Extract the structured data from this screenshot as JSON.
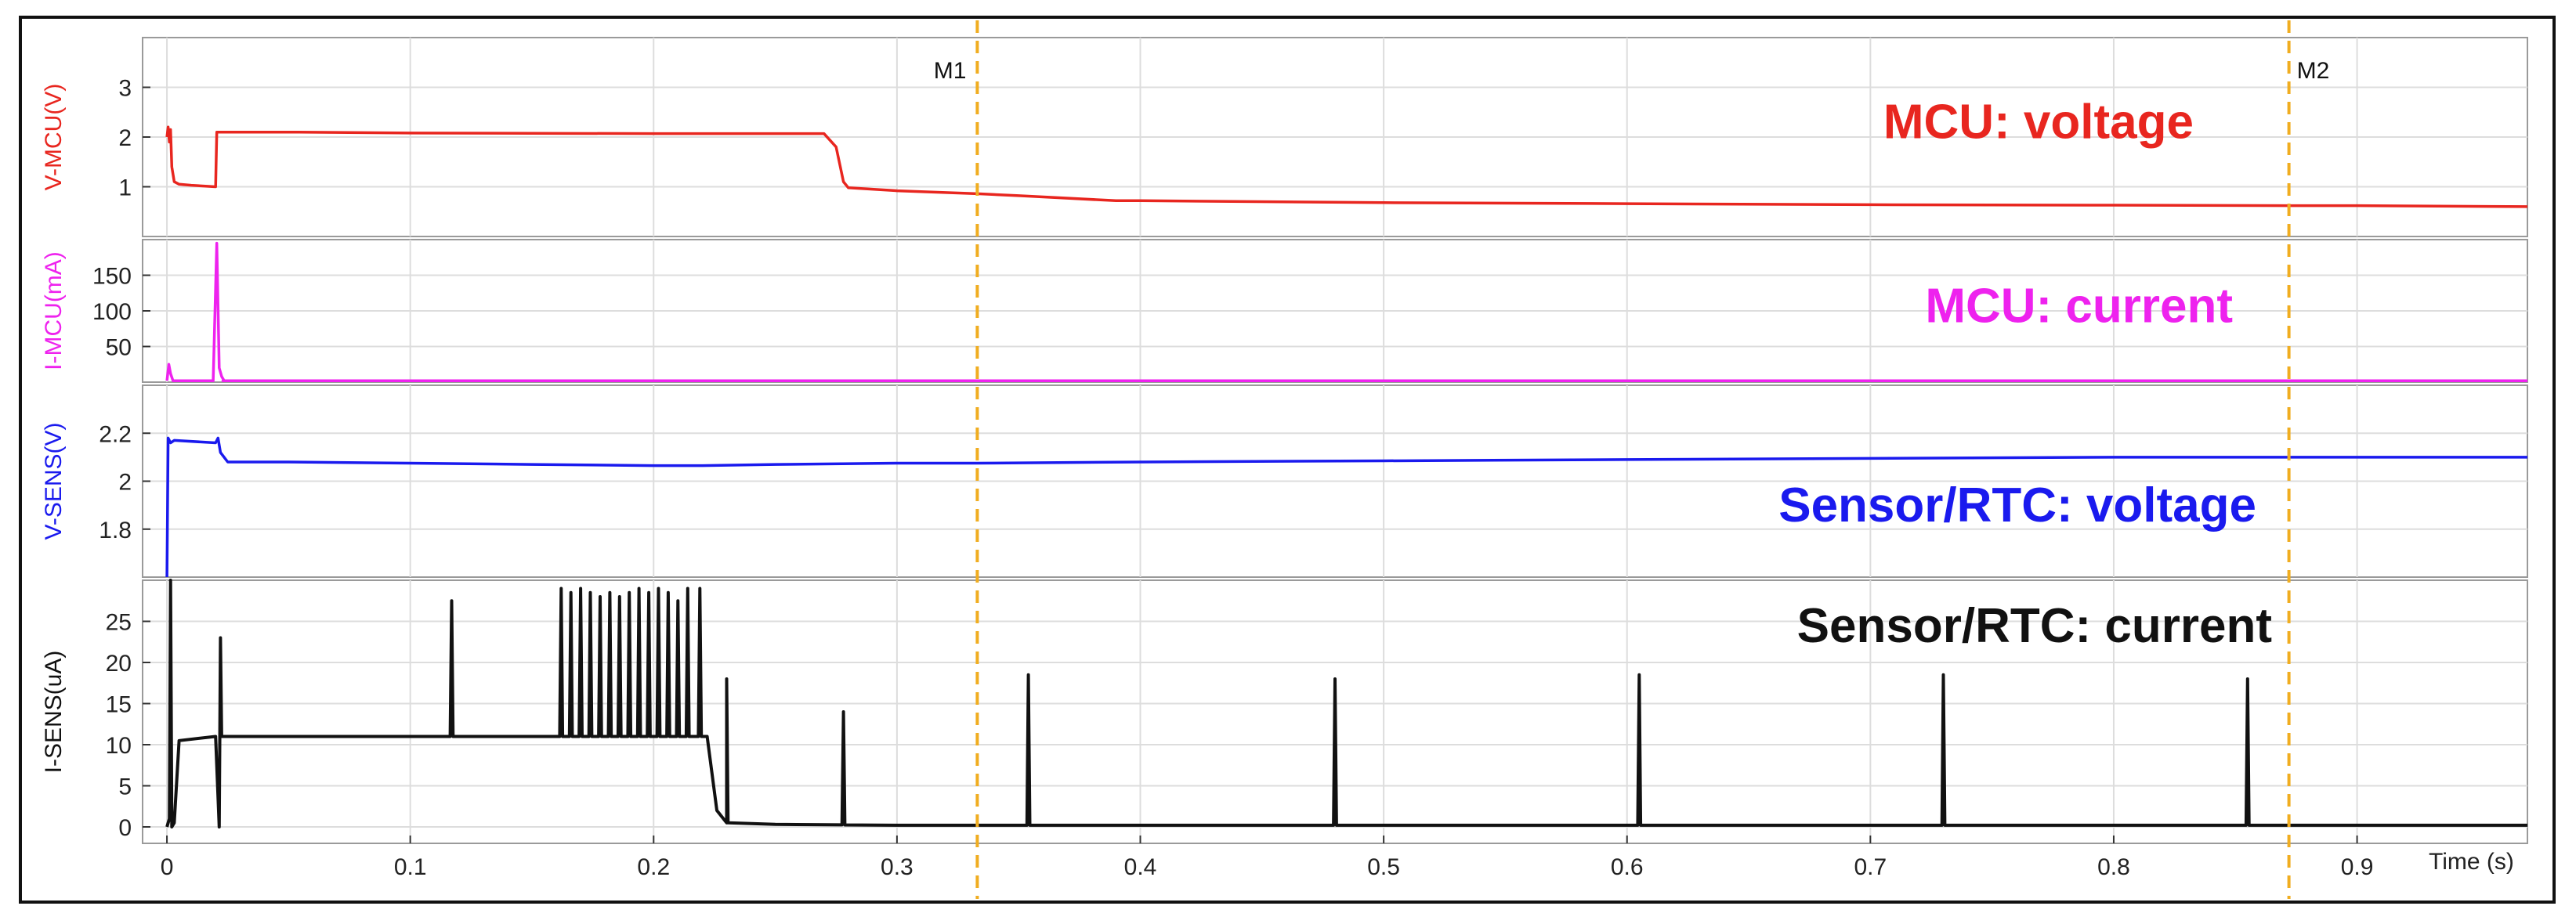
{
  "chart_data": {
    "type": "line",
    "xlabel": "Time (s)",
    "xlim": [
      -0.01,
      0.97
    ],
    "x_ticks": [
      0,
      0.1,
      0.2,
      0.3,
      0.4,
      0.5,
      0.6,
      0.7,
      0.8,
      0.9
    ],
    "x_tick_labels": [
      "0",
      "0.1",
      "0.2",
      "0.3",
      "0.4",
      "0.5",
      "0.6",
      "0.7",
      "0.8",
      "0.9"
    ],
    "grid": true,
    "markers": [
      {
        "label": "M1",
        "x": 0.333,
        "color": "#f0ad20"
      },
      {
        "label": "M2",
        "x": 0.872,
        "color": "#f0ad20"
      }
    ],
    "panels": [
      {
        "id": "v-mcu",
        "title": "MCU: voltage",
        "ylabel": "V-MCU(V)",
        "color": "#e8261f",
        "ylim": [
          0,
          4
        ],
        "y_ticks": [
          1,
          2,
          3
        ],
        "y_tick_labels": [
          "1",
          "2",
          "3"
        ],
        "series": {
          "x": [
            0,
            0.0005,
            0.001,
            0.0015,
            0.002,
            0.003,
            0.005,
            0.01,
            0.02,
            0.0205,
            0.0215,
            0.05,
            0.1,
            0.2,
            0.27,
            0.275,
            0.278,
            0.28,
            0.3,
            0.333,
            0.35,
            0.39,
            0.4,
            0.5,
            0.6,
            0.7,
            0.8,
            0.872,
            0.9,
            0.97
          ],
          "y": [
            2.0,
            2.2,
            1.9,
            2.15,
            1.4,
            1.1,
            1.05,
            1.03,
            1.0,
            2.1,
            2.1,
            2.1,
            2.08,
            2.07,
            2.07,
            1.8,
            1.1,
            0.98,
            0.92,
            0.86,
            0.82,
            0.72,
            0.72,
            0.68,
            0.66,
            0.64,
            0.63,
            0.62,
            0.62,
            0.6
          ]
        }
      },
      {
        "id": "i-mcu",
        "title": "MCU: current",
        "ylabel": "I-MCU(mA)",
        "color": "#ee22ee",
        "ylim": [
          0,
          200
        ],
        "y_ticks": [
          50,
          100,
          150
        ],
        "y_tick_labels": [
          "50",
          "100",
          "150"
        ],
        "series": {
          "x": [
            0,
            0.0008,
            0.0015,
            0.0025,
            0.019,
            0.0205,
            0.0215,
            0.0225,
            0.0235,
            0.023,
            0.5,
            0.97
          ],
          "y": [
            2,
            25,
            12,
            2,
            2,
            195,
            20,
            8,
            2,
            2,
            2,
            2
          ]
        }
      },
      {
        "id": "v-sens",
        "title": "Sensor/RTC: voltage",
        "ylabel": "V-SENS(V)",
        "color": "#1a1aee",
        "ylim": [
          1.6,
          2.4
        ],
        "y_ticks": [
          1.8,
          2,
          2.2
        ],
        "y_tick_labels": [
          "1.8",
          "2",
          "2.2"
        ],
        "series": {
          "x": [
            0,
            0.0005,
            0.0015,
            0.003,
            0.02,
            0.021,
            0.022,
            0.025,
            0.05,
            0.1,
            0.15,
            0.2,
            0.22,
            0.25,
            0.3,
            0.333,
            0.4,
            0.5,
            0.6,
            0.7,
            0.8,
            0.872,
            0.9,
            0.97
          ],
          "y": [
            1.6,
            2.18,
            2.16,
            2.17,
            2.16,
            2.18,
            2.12,
            2.08,
            2.08,
            2.075,
            2.07,
            2.065,
            2.065,
            2.07,
            2.075,
            2.075,
            2.08,
            2.085,
            2.09,
            2.095,
            2.1,
            2.1,
            2.1,
            2.1
          ]
        }
      },
      {
        "id": "i-sens",
        "title": "Sensor/RTC: current",
        "ylabel": "I-SENS(uA)",
        "color": "#111111",
        "ylim": [
          -2,
          30
        ],
        "y_ticks": [
          0,
          5,
          10,
          15,
          20,
          25
        ],
        "y_tick_labels": [
          "0",
          "5",
          "10",
          "15",
          "20",
          "25"
        ],
        "series": {
          "base": [
            {
              "x": 0,
              "y": 0
            },
            {
              "x": 0.001,
              "y": 1
            },
            {
              "x": 0.002,
              "y": 0
            },
            {
              "x": 0.003,
              "y": 0.5
            },
            {
              "x": 0.005,
              "y": 10.5
            },
            {
              "x": 0.02,
              "y": 11
            },
            {
              "x": 0.0215,
              "y": 0
            },
            {
              "x": 0.0225,
              "y": 11
            },
            {
              "x": 0.05,
              "y": 11
            },
            {
              "x": 0.1,
              "y": 11
            },
            {
              "x": 0.15,
              "y": 11
            },
            {
              "x": 0.2,
              "y": 11
            },
            {
              "x": 0.222,
              "y": 11
            },
            {
              "x": 0.226,
              "y": 2
            },
            {
              "x": 0.23,
              "y": 0.5
            },
            {
              "x": 0.25,
              "y": 0.3
            },
            {
              "x": 0.3,
              "y": 0.2
            },
            {
              "x": 0.4,
              "y": 0.2
            },
            {
              "x": 0.5,
              "y": 0.2
            },
            {
              "x": 0.6,
              "y": 0.2
            },
            {
              "x": 0.7,
              "y": 0.2
            },
            {
              "x": 0.8,
              "y": 0.2
            },
            {
              "x": 0.9,
              "y": 0.2
            },
            {
              "x": 0.97,
              "y": 0.2
            }
          ],
          "spikes": [
            {
              "x": 0.0015,
              "y": 30
            },
            {
              "x": 0.022,
              "y": 23
            },
            {
              "x": 0.117,
              "y": 27.5
            },
            {
              "x": 0.162,
              "y": 29
            },
            {
              "x": 0.166,
              "y": 28.5
            },
            {
              "x": 0.17,
              "y": 29
            },
            {
              "x": 0.174,
              "y": 28.5
            },
            {
              "x": 0.178,
              "y": 28
            },
            {
              "x": 0.182,
              "y": 28.5
            },
            {
              "x": 0.186,
              "y": 28
            },
            {
              "x": 0.19,
              "y": 28.5
            },
            {
              "x": 0.194,
              "y": 29
            },
            {
              "x": 0.198,
              "y": 28.5
            },
            {
              "x": 0.202,
              "y": 29
            },
            {
              "x": 0.206,
              "y": 28.5
            },
            {
              "x": 0.21,
              "y": 27.5
            },
            {
              "x": 0.214,
              "y": 29
            },
            {
              "x": 0.219,
              "y": 29
            },
            {
              "x": 0.23,
              "y": 18
            },
            {
              "x": 0.278,
              "y": 14
            },
            {
              "x": 0.354,
              "y": 18.5
            },
            {
              "x": 0.48,
              "y": 18
            },
            {
              "x": 0.605,
              "y": 18.5
            },
            {
              "x": 0.73,
              "y": 18.5
            },
            {
              "x": 0.855,
              "y": 18
            }
          ]
        }
      }
    ]
  }
}
